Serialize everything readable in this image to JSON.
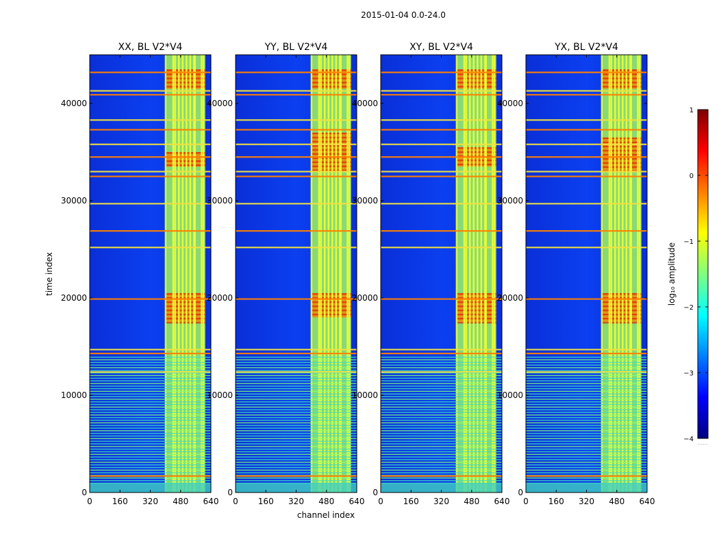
{
  "figure": {
    "suptitle": "2015-01-04 0.0-24.0",
    "xlabel": "channel index",
    "ylabel": "time index"
  },
  "colormap": {
    "name": "jet",
    "stops": [
      "#00007f",
      "#0000ff",
      "#007fff",
      "#00ffff",
      "#7fff7f",
      "#ffff00",
      "#ff7f00",
      "#ff0000",
      "#7f0000"
    ]
  },
  "chart_data": {
    "type": "heatmap",
    "x_range": [
      0,
      640
    ],
    "y_range": [
      0,
      45000
    ],
    "x_ticks": [
      0,
      160,
      320,
      480,
      640
    ],
    "y_ticks": [
      0,
      10000,
      20000,
      30000,
      40000
    ],
    "x_tick_labels": [
      "0",
      "160",
      "320",
      "480",
      "640"
    ],
    "y_tick_labels": [
      "0",
      "10000",
      "20000",
      "30000",
      "40000"
    ],
    "colorbar": {
      "label": "log₁₀ amplitude",
      "range": [
        -4,
        1
      ],
      "ticks": [
        1,
        0,
        -1,
        -2,
        -3,
        -4
      ],
      "tick_labels": [
        "1",
        "0",
        "−1",
        "−2",
        "−3",
        "−4"
      ],
      "extra_label": "......"
    },
    "panels": [
      {
        "title": "XX, BL V2*V4",
        "hot_intervals": [
          [
            33500,
            35000
          ],
          [
            41500,
            43500
          ],
          [
            17500,
            20500
          ]
        ]
      },
      {
        "title": "YY, BL V2*V4",
        "hot_intervals": [
          [
            33000,
            37000
          ],
          [
            41500,
            43500
          ],
          [
            18000,
            20500
          ]
        ]
      },
      {
        "title": "XY, BL V2*V4",
        "hot_intervals": [
          [
            33500,
            35500
          ],
          [
            41500,
            43500
          ],
          [
            17500,
            20500
          ]
        ]
      },
      {
        "title": "YX, BL V2*V4",
        "hot_intervals": [
          [
            33000,
            36500
          ],
          [
            41500,
            43500
          ],
          [
            17500,
            20500
          ]
        ]
      }
    ],
    "bright_channel_band": [
      400,
      610
    ],
    "rfi_channels": [
      400,
      440,
      450,
      470,
      490,
      510,
      530,
      550,
      555,
      590,
      600
    ],
    "rfi_time_lines": [
      1700,
      12400,
      14300,
      14700,
      19900,
      25200,
      26900,
      29700,
      32500,
      33000,
      34500,
      35800,
      37300,
      38300,
      40900,
      41300,
      43200
    ],
    "dense_stripe_time_range": [
      1000,
      14000
    ]
  }
}
